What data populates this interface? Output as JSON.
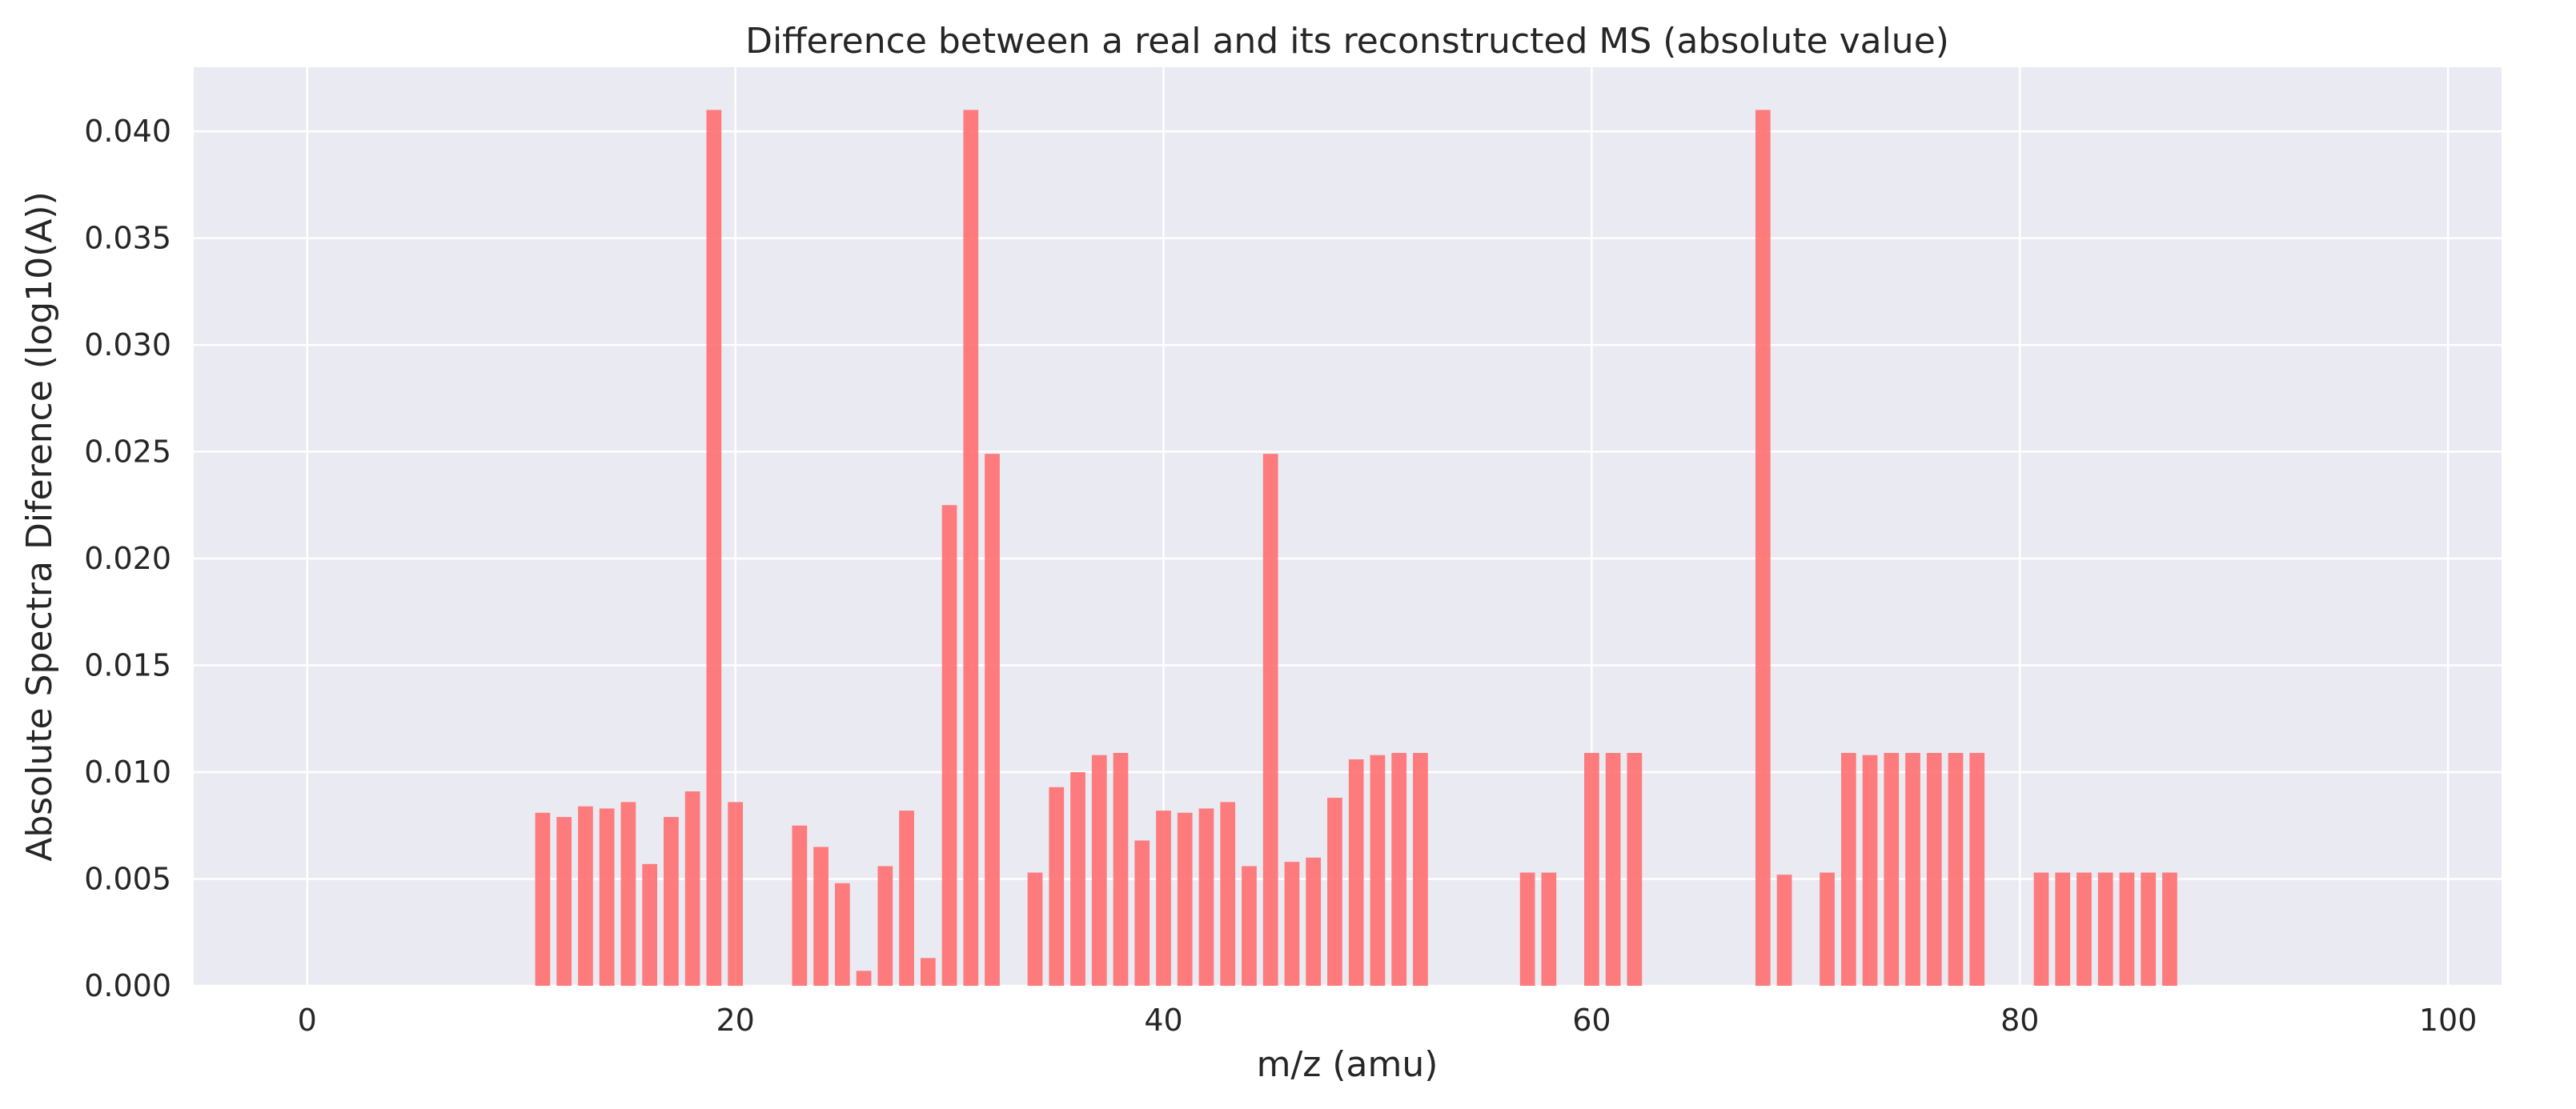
{
  "chart_data": {
    "type": "bar",
    "title": "Difference between a real and its reconstructed MS (absolute value)",
    "xlabel": "m/z (amu)",
    "ylabel": "Absolute Spectra Diference (log10(A))",
    "xlim": [
      -5.3,
      102.5
    ],
    "ylim": [
      0,
      0.043
    ],
    "xticks": [
      0,
      20,
      40,
      60,
      80,
      100
    ],
    "xtick_labels": [
      "0",
      "20",
      "40",
      "60",
      "80",
      "100"
    ],
    "yticks": [
      0,
      0.005,
      0.01,
      0.015,
      0.02,
      0.025,
      0.03,
      0.035,
      0.04
    ],
    "ytick_labels": [
      "0.000",
      "0.005",
      "0.010",
      "0.015",
      "0.020",
      "0.025",
      "0.030",
      "0.035",
      "0.040"
    ],
    "grid": true,
    "bar_width": 0.7,
    "bar_color": "#ff6b6b",
    "background_color": "#eaeaf2",
    "grid_color": "#ffffff",
    "x": [
      11,
      12,
      13,
      14,
      15,
      16,
      17,
      18,
      19,
      20,
      23,
      24,
      25,
      26,
      27,
      28,
      29,
      30,
      31,
      32,
      34,
      35,
      36,
      37,
      38,
      39,
      40,
      41,
      42,
      43,
      44,
      45,
      46,
      47,
      48,
      49,
      50,
      51,
      52,
      57,
      58,
      60,
      61,
      62,
      68,
      69,
      71,
      72,
      73,
      74,
      75,
      76,
      77,
      78,
      81,
      82,
      83,
      84,
      85,
      86,
      87
    ],
    "values": [
      0.0081,
      0.0079,
      0.0084,
      0.0083,
      0.0086,
      0.0057,
      0.0079,
      0.0091,
      0.041,
      0.0086,
      0.0075,
      0.0065,
      0.0048,
      0.0007,
      0.0056,
      0.0082,
      0.0013,
      0.0225,
      0.041,
      0.0249,
      0.0053,
      0.0093,
      0.01,
      0.0108,
      0.0109,
      0.0068,
      0.0082,
      0.0081,
      0.0083,
      0.0086,
      0.0056,
      0.0249,
      0.0058,
      0.006,
      0.0088,
      0.0106,
      0.0108,
      0.0109,
      0.0109,
      0.0053,
      0.0053,
      0.0109,
      0.0109,
      0.0109,
      0.041,
      0.0052,
      0.0053,
      0.0109,
      0.0108,
      0.0109,
      0.0109,
      0.0109,
      0.0109,
      0.0109,
      0.0053,
      0.0053,
      0.0053,
      0.0053,
      0.0053,
      0.0053,
      0.0053
    ]
  }
}
